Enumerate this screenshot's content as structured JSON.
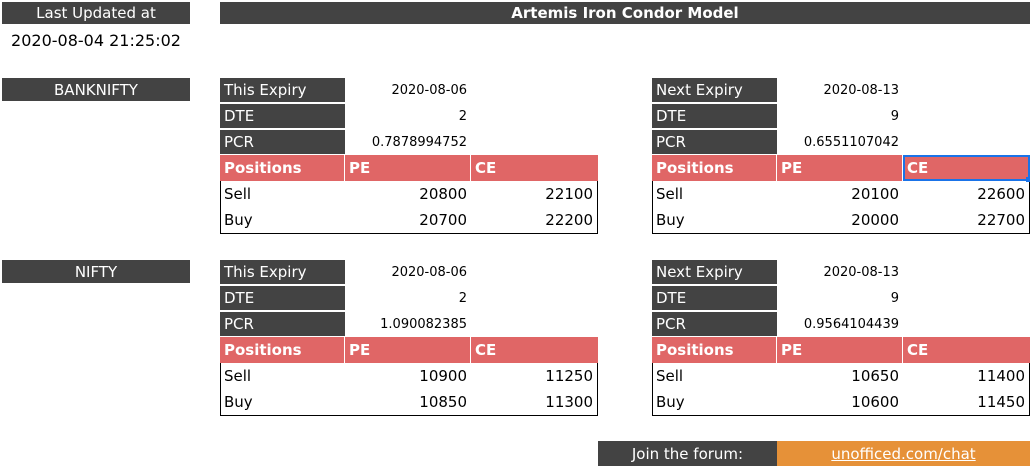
{
  "header": {
    "last_updated_label": "Last Updated at",
    "last_updated": "2020-08-04 21:25:02",
    "title": "Artemis Iron Condor Model"
  },
  "sections": [
    {
      "name": "BANKNIFTY",
      "expiries": [
        {
          "label": "This Expiry",
          "date": "2020-08-06",
          "dte_label": "DTE",
          "dte": 2,
          "pcr_label": "PCR",
          "pcr": 0.7878994752,
          "columns": [
            "Positions",
            "PE",
            "CE"
          ],
          "rows": [
            [
              "Sell",
              20800,
              22100
            ],
            [
              "Buy",
              20700,
              22200
            ]
          ]
        },
        {
          "label": "Next Expiry",
          "date": "2020-08-13",
          "dte_label": "DTE",
          "dte": 9,
          "pcr_label": "PCR",
          "pcr": 0.6551107042,
          "columns": [
            "Positions",
            "PE",
            "CE"
          ],
          "rows": [
            [
              "Sell",
              20100,
              22600
            ],
            [
              "Buy",
              20000,
              22700
            ]
          ]
        }
      ]
    },
    {
      "name": "NIFTY",
      "expiries": [
        {
          "label": "This Expiry",
          "date": "2020-08-06",
          "dte_label": "DTE",
          "dte": 2,
          "pcr_label": "PCR",
          "pcr": 1.090082385,
          "columns": [
            "Positions",
            "PE",
            "CE"
          ],
          "rows": [
            [
              "Sell",
              10900,
              11250
            ],
            [
              "Buy",
              10850,
              11300
            ]
          ]
        },
        {
          "label": "Next Expiry",
          "date": "2020-08-13",
          "dte_label": "DTE",
          "dte": 9,
          "pcr_label": "PCR",
          "pcr": 0.9564104439,
          "columns": [
            "Positions",
            "PE",
            "CE"
          ],
          "rows": [
            [
              "Sell",
              10650,
              11400
            ],
            [
              "Buy",
              10600,
              11450
            ]
          ]
        }
      ]
    }
  ],
  "footer": {
    "label": "Join the forum:",
    "link": "unofficed.com/chat"
  }
}
